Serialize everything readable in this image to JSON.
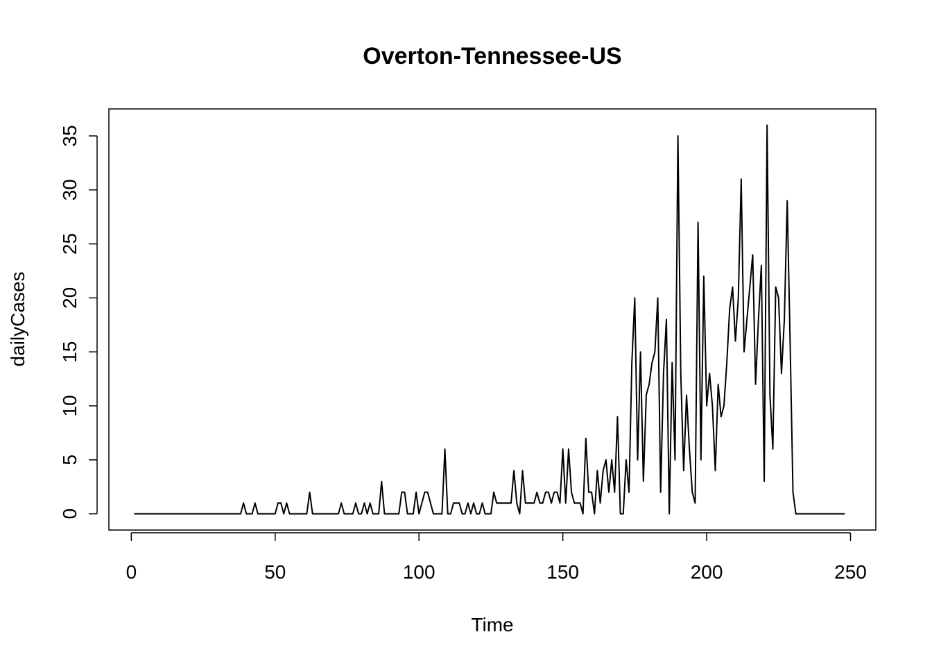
{
  "chart_data": {
    "type": "line",
    "title": "Overton-Tennessee-US",
    "xlabel": "Time",
    "ylabel": "dailyCases",
    "xlim": [
      -7.8,
      258.8
    ],
    "ylim": [
      -1.5,
      37.5
    ],
    "xticks": [
      0,
      50,
      100,
      150,
      200,
      250
    ],
    "yticks": [
      0,
      5,
      10,
      15,
      20,
      25,
      30,
      35
    ],
    "grid": false,
    "legend": "none",
    "colors": {
      "line": "#000000",
      "axis": "#000000",
      "background": "#ffffff"
    },
    "series": [
      {
        "x": [
          1,
          2,
          3,
          4,
          5,
          6,
          7,
          8,
          9,
          10,
          11,
          12,
          13,
          14,
          15,
          16,
          17,
          18,
          19,
          20,
          21,
          22,
          23,
          24,
          25,
          26,
          27,
          28,
          29,
          30,
          31,
          32,
          33,
          34,
          35,
          36,
          37,
          38,
          39,
          40,
          41,
          42,
          43,
          44,
          45,
          46,
          47,
          48,
          49,
          50,
          51,
          52,
          53,
          54,
          55,
          56,
          57,
          58,
          59,
          60,
          61,
          62,
          63,
          64,
          65,
          66,
          67,
          68,
          69,
          70,
          71,
          72,
          73,
          74,
          75,
          76,
          77,
          78,
          79,
          80,
          81,
          82,
          83,
          84,
          85,
          86,
          87,
          88,
          89,
          90,
          91,
          92,
          93,
          94,
          95,
          96,
          97,
          98,
          99,
          100,
          101,
          102,
          103,
          104,
          105,
          106,
          107,
          108,
          109,
          110,
          111,
          112,
          113,
          114,
          115,
          116,
          117,
          118,
          119,
          120,
          121,
          122,
          123,
          124,
          125,
          126,
          127,
          128,
          129,
          130,
          131,
          132,
          133,
          134,
          135,
          136,
          137,
          138,
          139,
          140,
          141,
          142,
          143,
          144,
          145,
          146,
          147,
          148,
          149,
          150,
          151,
          152,
          153,
          154,
          155,
          156,
          157,
          158,
          159,
          160,
          161,
          162,
          163,
          164,
          165,
          166,
          167,
          168,
          169,
          170,
          171,
          172,
          173,
          174,
          175,
          176,
          177,
          178,
          179,
          180,
          181,
          182,
          183,
          184,
          185,
          186,
          187,
          188,
          189,
          190,
          191,
          192,
          193,
          194,
          195,
          196,
          197,
          198,
          199,
          200,
          201,
          202,
          203,
          204,
          205,
          206,
          207,
          208,
          209,
          210,
          211,
          212,
          213,
          214,
          215,
          216,
          217,
          218,
          219,
          220,
          221,
          222,
          223,
          224,
          225,
          226,
          227,
          228,
          229,
          230,
          231,
          232,
          233,
          234,
          235,
          236,
          237,
          238,
          239,
          240,
          241,
          242,
          243,
          244,
          245,
          246,
          247,
          248
        ],
        "values": [
          0,
          0,
          0,
          0,
          0,
          0,
          0,
          0,
          0,
          0,
          0,
          0,
          0,
          0,
          0,
          0,
          0,
          0,
          0,
          0,
          0,
          0,
          0,
          0,
          0,
          0,
          0,
          0,
          0,
          0,
          0,
          0,
          0,
          0,
          0,
          0,
          0,
          0,
          1,
          0,
          0,
          0,
          1,
          0,
          0,
          0,
          0,
          0,
          0,
          0,
          1,
          1,
          0,
          1,
          0,
          0,
          0,
          0,
          0,
          0,
          0,
          2,
          0,
          0,
          0,
          0,
          0,
          0,
          0,
          0,
          0,
          0,
          1,
          0,
          0,
          0,
          0,
          1,
          0,
          0,
          1,
          0,
          1,
          0,
          0,
          0,
          3,
          0,
          0,
          0,
          0,
          0,
          0,
          2,
          2,
          0,
          0,
          0,
          2,
          0,
          1,
          2,
          2,
          1,
          0,
          0,
          0,
          0,
          6,
          0,
          0,
          1,
          1,
          1,
          0,
          0,
          1,
          0,
          1,
          0,
          0,
          1,
          0,
          0,
          0,
          2,
          1,
          1,
          1,
          1,
          1,
          1,
          4,
          1,
          0,
          4,
          1,
          1,
          1,
          1,
          2,
          1,
          1,
          2,
          2,
          1,
          2,
          2,
          1,
          6,
          1,
          6,
          2,
          1,
          1,
          1,
          0,
          7,
          2,
          2,
          0,
          4,
          1,
          4,
          5,
          2,
          5,
          2,
          9,
          0,
          0,
          5,
          2,
          14,
          20,
          5,
          15,
          3,
          11,
          12,
          14,
          15,
          20,
          2,
          13,
          18,
          0,
          14,
          5,
          35,
          13,
          4,
          11,
          6,
          2,
          1,
          27,
          5,
          22,
          10,
          13,
          10,
          4,
          12,
          9,
          10,
          14,
          19,
          21,
          16,
          20,
          31,
          15,
          18,
          21,
          24,
          12,
          18,
          23,
          3,
          36,
          11,
          6,
          21,
          20,
          13,
          18,
          29,
          16,
          2,
          0,
          0,
          0,
          0,
          0,
          0,
          0,
          0,
          0,
          0,
          0,
          0,
          0,
          0,
          0,
          0,
          0,
          0
        ]
      }
    ]
  }
}
